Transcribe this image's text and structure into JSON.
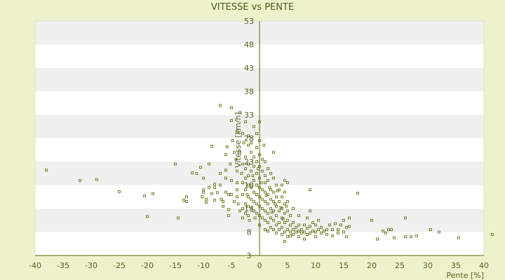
{
  "chart_data": {
    "type": "scatter",
    "title": "VITESSE vs PENTE",
    "xlabel": "Pente [%]",
    "ylabel": "Vitesse [km/h]",
    "xlim": [
      -40,
      40
    ],
    "ylim": [
      3,
      53
    ],
    "xticks": [
      -40,
      -35,
      -30,
      -25,
      -20,
      -15,
      -10,
      -5,
      0,
      5,
      10,
      15,
      20,
      25,
      30,
      35,
      40
    ],
    "yticks": [
      3,
      8,
      13,
      18,
      23,
      28,
      33,
      38,
      43,
      48,
      53
    ],
    "grid": "horizontal alternating bands",
    "colors": {
      "background": "#eef2cc",
      "band_light": "#ffffff",
      "band_dark": "#f0f0f0",
      "marker": "#556b00",
      "axis": "#556b00",
      "text": "#4a5a1e"
    },
    "series": [
      {
        "points": [
          [
            -38,
            21.2
          ],
          [
            -32,
            19
          ],
          [
            -29,
            19.2
          ],
          [
            -25,
            16.6
          ],
          [
            -20.5,
            15.7
          ],
          [
            -19,
            16.2
          ],
          [
            -20,
            11.3
          ],
          [
            -14.5,
            11
          ],
          [
            -15,
            22.5
          ],
          [
            -13.5,
            14.8
          ],
          [
            -13,
            14.5
          ],
          [
            -13,
            15.5
          ],
          [
            -12,
            20.6
          ],
          [
            -11.2,
            20.5
          ],
          [
            -10.5,
            21.8
          ],
          [
            -10,
            19.5
          ],
          [
            -10,
            17
          ],
          [
            -10,
            16.5
          ],
          [
            -10.2,
            15.5
          ],
          [
            -9.5,
            15
          ],
          [
            -9.5,
            14.3
          ],
          [
            -9,
            22.5
          ],
          [
            -9,
            17.5
          ],
          [
            -8.5,
            26.3
          ],
          [
            -8.5,
            16.2
          ],
          [
            -8,
            14.8
          ],
          [
            -8,
            17.5
          ],
          [
            -8,
            18.2
          ],
          [
            -7.5,
            16.4
          ],
          [
            -7,
            35
          ],
          [
            -7,
            20.5
          ],
          [
            -7,
            18
          ],
          [
            -6.8,
            15
          ],
          [
            -6.5,
            14.5
          ],
          [
            -6.5,
            13.5
          ],
          [
            -6,
            24.5
          ],
          [
            -6,
            21.2
          ],
          [
            -6,
            19.5
          ],
          [
            -6,
            16.5
          ],
          [
            -5.8,
            26.2
          ],
          [
            -5.5,
            16
          ],
          [
            -5.5,
            12.8
          ],
          [
            -5.5,
            11.5
          ],
          [
            -5.2,
            22.5
          ],
          [
            -5,
            31.8
          ],
          [
            -5,
            34.5
          ],
          [
            -5,
            19
          ],
          [
            -5,
            16
          ],
          [
            -4.8,
            27.5
          ],
          [
            -4.5,
            25
          ],
          [
            -4.5,
            14.5
          ],
          [
            -4.2,
            23.5
          ],
          [
            -4,
            29.5
          ],
          [
            -4,
            21
          ],
          [
            -4,
            18.5
          ],
          [
            -4,
            17
          ],
          [
            -4,
            15.5
          ],
          [
            -3.8,
            14
          ],
          [
            -3.5,
            33.5
          ],
          [
            -3.5,
            25
          ],
          [
            -3.5,
            12.5
          ],
          [
            -3.2,
            20.5
          ],
          [
            -3,
            29
          ],
          [
            -3,
            22.5
          ],
          [
            -3,
            18.5
          ],
          [
            -3,
            16
          ],
          [
            -3,
            13
          ],
          [
            -3,
            11
          ],
          [
            -2.8,
            27
          ],
          [
            -2.5,
            31.5
          ],
          [
            -2.5,
            24
          ],
          [
            -2.5,
            21.5
          ],
          [
            -2.5,
            19.5
          ],
          [
            -2.5,
            17
          ],
          [
            -2.5,
            14
          ],
          [
            -2.5,
            12
          ],
          [
            -2.2,
            16
          ],
          [
            -2,
            28.5
          ],
          [
            -2,
            26.5
          ],
          [
            -2,
            22.5
          ],
          [
            -2,
            20
          ],
          [
            -2,
            18
          ],
          [
            -2,
            15.5
          ],
          [
            -2,
            13.5
          ],
          [
            -2,
            11.5
          ],
          [
            -1.8,
            10.5
          ],
          [
            -1.5,
            27
          ],
          [
            -1.5,
            25
          ],
          [
            -1.5,
            21
          ],
          [
            -1.5,
            17.5
          ],
          [
            -1.5,
            15
          ],
          [
            -1.5,
            13
          ],
          [
            -1.2,
            20
          ],
          [
            -1,
            30.5
          ],
          [
            -1,
            24
          ],
          [
            -1,
            22
          ],
          [
            -1,
            19
          ],
          [
            -1,
            16.5
          ],
          [
            -1,
            14.5
          ],
          [
            -1,
            12.5
          ],
          [
            -0.8,
            11
          ],
          [
            -0.5,
            29
          ],
          [
            -0.5,
            26
          ],
          [
            -0.5,
            23
          ],
          [
            -0.5,
            20.5
          ],
          [
            -0.5,
            18
          ],
          [
            -0.5,
            16
          ],
          [
            -0.5,
            14
          ],
          [
            -0.5,
            12
          ],
          [
            -0.2,
            21.5
          ],
          [
            0,
            31.5
          ],
          [
            0,
            27.5
          ],
          [
            0,
            24.5
          ],
          [
            0,
            22
          ],
          [
            0,
            19.5
          ],
          [
            0,
            17.5
          ],
          [
            0,
            15.5
          ],
          [
            0,
            13.5
          ],
          [
            0,
            11.5
          ],
          [
            0,
            9.5
          ],
          [
            0.3,
            18.5
          ],
          [
            0.5,
            23.5
          ],
          [
            0.5,
            21
          ],
          [
            0.5,
            17
          ],
          [
            0.5,
            15
          ],
          [
            0.5,
            13
          ],
          [
            0.5,
            11
          ],
          [
            0.8,
            26.5
          ],
          [
            1,
            23
          ],
          [
            1,
            20
          ],
          [
            1,
            18.5
          ],
          [
            1,
            16.5
          ],
          [
            1,
            14.5
          ],
          [
            1,
            12.5
          ],
          [
            1,
            10.5
          ],
          [
            1,
            8.5
          ],
          [
            1.2,
            15.8
          ],
          [
            1.5,
            21.5
          ],
          [
            1.5,
            19
          ],
          [
            1.5,
            16
          ],
          [
            1.5,
            14
          ],
          [
            1.5,
            12
          ],
          [
            1.5,
            10
          ],
          [
            1.5,
            8.2
          ],
          [
            1.8,
            17.5
          ],
          [
            2,
            20.5
          ],
          [
            2,
            17
          ],
          [
            2,
            15
          ],
          [
            2,
            13
          ],
          [
            2,
            11
          ],
          [
            2,
            9
          ],
          [
            2.2,
            12.2
          ],
          [
            2.5,
            25
          ],
          [
            2.5,
            19.5
          ],
          [
            2.5,
            16.5
          ],
          [
            2.5,
            14.5
          ],
          [
            2.5,
            12.5
          ],
          [
            2.5,
            10.5
          ],
          [
            2.5,
            8.5
          ],
          [
            2.8,
            14
          ],
          [
            3,
            18
          ],
          [
            3,
            15.5
          ],
          [
            3,
            13.5
          ],
          [
            3,
            11.5
          ],
          [
            3,
            9.5
          ],
          [
            3,
            7.8
          ],
          [
            3.2,
            16.8
          ],
          [
            3.5,
            17
          ],
          [
            3.5,
            14.5
          ],
          [
            3.5,
            12.5
          ],
          [
            3.5,
            10
          ],
          [
            3.5,
            8.5
          ],
          [
            3.8,
            13.2
          ],
          [
            4,
            18
          ],
          [
            4,
            15.5
          ],
          [
            4,
            13
          ],
          [
            4,
            11
          ],
          [
            4,
            9
          ],
          [
            4,
            7.5
          ],
          [
            4.2,
            10.8
          ],
          [
            4.5,
            19
          ],
          [
            4.5,
            16.5
          ],
          [
            4.5,
            14
          ],
          [
            4.5,
            12
          ],
          [
            4.5,
            10
          ],
          [
            4.5,
            8
          ],
          [
            4.5,
            6
          ],
          [
            4.8,
            13.5
          ],
          [
            5,
            18.5
          ],
          [
            5,
            14.5
          ],
          [
            5,
            12.5
          ],
          [
            5,
            10.5
          ],
          [
            5,
            8.5
          ],
          [
            5,
            7
          ],
          [
            5.5,
            11.5
          ],
          [
            5.5,
            9.5
          ],
          [
            5.5,
            8
          ],
          [
            5.5,
            7.2
          ],
          [
            6,
            13
          ],
          [
            6,
            10
          ],
          [
            6,
            8.5
          ],
          [
            6,
            7.5
          ],
          [
            6.5,
            9
          ],
          [
            6.5,
            8
          ],
          [
            7,
            11.5
          ],
          [
            7,
            9.5
          ],
          [
            7,
            8.2
          ],
          [
            7,
            7
          ],
          [
            7.5,
            8.5
          ],
          [
            7.5,
            7.8
          ],
          [
            8,
            9.5
          ],
          [
            8,
            8
          ],
          [
            8,
            6.5
          ],
          [
            8.5,
            11
          ],
          [
            8.5,
            8.8
          ],
          [
            8.5,
            7.5
          ],
          [
            9,
            17
          ],
          [
            9,
            12.5
          ],
          [
            9,
            9.2
          ],
          [
            9,
            7.8
          ],
          [
            9.5,
            10
          ],
          [
            9.5,
            8.2
          ],
          [
            10,
            9.5
          ],
          [
            10,
            8
          ],
          [
            10,
            7
          ],
          [
            10.5,
            10.5
          ],
          [
            10.5,
            8.5
          ],
          [
            11,
            9
          ],
          [
            11,
            7.8
          ],
          [
            11.5,
            8.2
          ],
          [
            12,
            8.5
          ],
          [
            12,
            7.5
          ],
          [
            12.5,
            9.5
          ],
          [
            13,
            8.5
          ],
          [
            13,
            7.2
          ],
          [
            13.5,
            9.8
          ],
          [
            14,
            8.5
          ],
          [
            14,
            7.8
          ],
          [
            14.5,
            9.5
          ],
          [
            15,
            10.5
          ],
          [
            15,
            8
          ],
          [
            15.5,
            9
          ],
          [
            15.5,
            7
          ],
          [
            16,
            11
          ],
          [
            16,
            9.2
          ],
          [
            17.5,
            16.3
          ],
          [
            20,
            10.5
          ],
          [
            21,
            6.5
          ],
          [
            22,
            8.2
          ],
          [
            22.5,
            7.8
          ],
          [
            23,
            8.5
          ],
          [
            23.5,
            8.5
          ],
          [
            24,
            6.8
          ],
          [
            26,
            11
          ],
          [
            26,
            7
          ],
          [
            27,
            7
          ],
          [
            28,
            7.2
          ],
          [
            30.5,
            8.5
          ],
          [
            32,
            8
          ],
          [
            35.5,
            6.8
          ],
          [
            41.5,
            7.5
          ]
        ]
      }
    ]
  }
}
